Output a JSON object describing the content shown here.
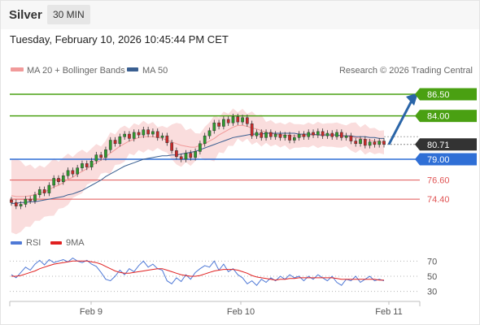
{
  "header": {
    "symbol": "Silver",
    "timeframe": "30 MIN"
  },
  "datetime": "Tuesday, February 10, 2026 10:45:44 PM CET",
  "legend": {
    "ma20_bb": "MA 20 + Bollinger Bands",
    "ma50": "MA 50",
    "credit": "Research © 2026 Trading Central"
  },
  "rsi_legend": {
    "rsi": "RSI",
    "ma9": "9MA"
  },
  "colors": {
    "resistance": "#4aa012",
    "support_main": "#2f6fd6",
    "support": "#e05555",
    "current": "#333333",
    "bb_fill": "#fadddd",
    "ma20": "#f19a9a",
    "ma50": "#3a5f91",
    "bull": "#2e9b2e",
    "bear": "#c92a2a",
    "arrow": "#2a65a8",
    "rsi": "#4f79d6",
    "rsi_ma": "#e02020"
  },
  "chart_data": [
    {
      "type": "candlestick",
      "xlabels": [
        "Feb 9",
        "Feb 10",
        "Feb 11"
      ],
      "ylim": [
        71.5,
        88.0
      ],
      "levels": [
        {
          "label": "86.50",
          "value": 86.5,
          "kind": "resistance"
        },
        {
          "label": "84.00",
          "value": 84.0,
          "kind": "resistance"
        },
        {
          "label": "80.71",
          "value": 80.71,
          "kind": "current"
        },
        {
          "label": "79.00",
          "value": 79.0,
          "kind": "support_main"
        },
        {
          "label": "76.60",
          "value": 76.6,
          "kind": "support"
        },
        {
          "label": "74.40",
          "value": 74.4,
          "kind": "support"
        }
      ],
      "close_series": [
        74.0,
        73.6,
        73.8,
        74.4,
        74.2,
        74.9,
        75.5,
        75.1,
        76.0,
        76.8,
        76.4,
        77.1,
        77.7,
        77.3,
        78.0,
        78.5,
        78.1,
        78.8,
        79.5,
        79.2,
        80.1,
        81.2,
        80.8,
        81.6,
        81.9,
        81.4,
        82.1,
        81.8,
        82.4,
        81.9,
        82.2,
        81.5,
        81.7,
        80.9,
        80.0,
        79.3,
        79.0,
        79.7,
        79.2,
        79.9,
        80.8,
        81.7,
        82.3,
        83.2,
        82.8,
        83.6,
        83.2,
        83.9,
        83.3,
        83.8,
        83.1,
        81.7,
        82.1,
        81.5,
        82.1,
        81.6,
        81.9,
        81.5,
        81.8,
        81.2,
        81.5,
        81.9,
        81.6,
        82.1,
        81.8,
        82.2,
        81.7,
        82.0,
        81.6,
        82.1,
        81.5,
        81.7,
        81.1,
        80.8,
        81.3,
        80.6,
        81.0,
        80.7,
        81.1,
        80.71
      ],
      "ma20_series": [
        74.8,
        74.7,
        74.7,
        74.7,
        74.8,
        74.9,
        75.1,
        75.2,
        75.5,
        75.8,
        76.0,
        76.3,
        76.7,
        76.9,
        77.3,
        77.6,
        77.9,
        78.3,
        78.6,
        78.9,
        79.3,
        79.7,
        80.1,
        80.5,
        80.8,
        81.1,
        81.3,
        81.5,
        81.6,
        81.6,
        81.6,
        81.5,
        81.4,
        81.2,
        81.0,
        80.8,
        80.6,
        80.5,
        80.4,
        80.4,
        80.6,
        80.8,
        81.1,
        81.4,
        81.8,
        82.1,
        82.4,
        82.7,
        82.9,
        82.9,
        82.8,
        82.6,
        82.5,
        82.3,
        82.1,
        82.0,
        81.9,
        81.8,
        81.8,
        81.7,
        81.7,
        81.7,
        81.7,
        81.8,
        81.8,
        81.8,
        81.8,
        81.8,
        81.8,
        81.8,
        81.7,
        81.7,
        81.6,
        81.5,
        81.4,
        81.3,
        81.2,
        81.1,
        81.0,
        80.95
      ],
      "ma50_series": [
        73.9,
        73.9,
        74.0,
        74.0,
        74.1,
        74.1,
        74.2,
        74.3,
        74.4,
        74.5,
        74.6,
        74.7,
        74.9,
        75.0,
        75.2,
        75.4,
        75.7,
        76.0,
        76.3,
        76.6,
        77.0,
        77.3,
        77.6,
        77.9,
        78.2,
        78.4,
        78.6,
        78.8,
        79.0,
        79.1,
        79.2,
        79.3,
        79.4,
        79.4,
        79.5,
        79.5,
        79.6,
        79.7,
        79.8,
        79.9,
        80.1,
        80.3,
        80.5,
        80.7,
        80.9,
        81.1,
        81.3,
        81.5,
        81.6,
        81.7,
        81.8,
        81.9,
        81.9,
        81.9,
        82.0,
        82.0,
        82.0,
        82.0,
        82.0,
        82.0,
        82.0,
        81.9,
        81.9,
        81.9,
        81.9,
        81.8,
        81.8,
        81.8,
        81.8,
        81.8,
        81.7,
        81.7,
        81.7,
        81.6,
        81.6,
        81.6,
        81.5,
        81.5,
        81.4,
        81.4
      ]
    },
    {
      "type": "line",
      "ylim": [
        20,
        80
      ],
      "yticks": [
        "70",
        "50",
        "30"
      ],
      "rsi_series": [
        52,
        48,
        55,
        62,
        58,
        66,
        71,
        65,
        72,
        68,
        70,
        72,
        69,
        74,
        70,
        68,
        71,
        66,
        63,
        55,
        46,
        44,
        50,
        58,
        52,
        60,
        56,
        64,
        70,
        62,
        66,
        60,
        58,
        44,
        40,
        48,
        43,
        52,
        46,
        55,
        60,
        64,
        62,
        70,
        58,
        66,
        56,
        60,
        52,
        48,
        40,
        44,
        38,
        46,
        42,
        48,
        44,
        50,
        46,
        52,
        48,
        50,
        44,
        50,
        46,
        52,
        48,
        44,
        50,
        42,
        38,
        46,
        44,
        50,
        42,
        46,
        50,
        44,
        46,
        44
      ],
      "rsi_ma_series": [
        50,
        50,
        51,
        53,
        55,
        57,
        60,
        62,
        64,
        66,
        67,
        68,
        69,
        70,
        70,
        70,
        70,
        69,
        68,
        66,
        63,
        60,
        57,
        55,
        54,
        54,
        55,
        56,
        57,
        58,
        59,
        60,
        60,
        58,
        56,
        54,
        52,
        51,
        50,
        50,
        51,
        53,
        55,
        57,
        58,
        59,
        59,
        59,
        58,
        56,
        54,
        51,
        49,
        48,
        47,
        46,
        45,
        46,
        46,
        47,
        47,
        48,
        48,
        48,
        48,
        48,
        48,
        48,
        48,
        47,
        46,
        46,
        46,
        46,
        46,
        46,
        46,
        46,
        45,
        45
      ]
    }
  ]
}
